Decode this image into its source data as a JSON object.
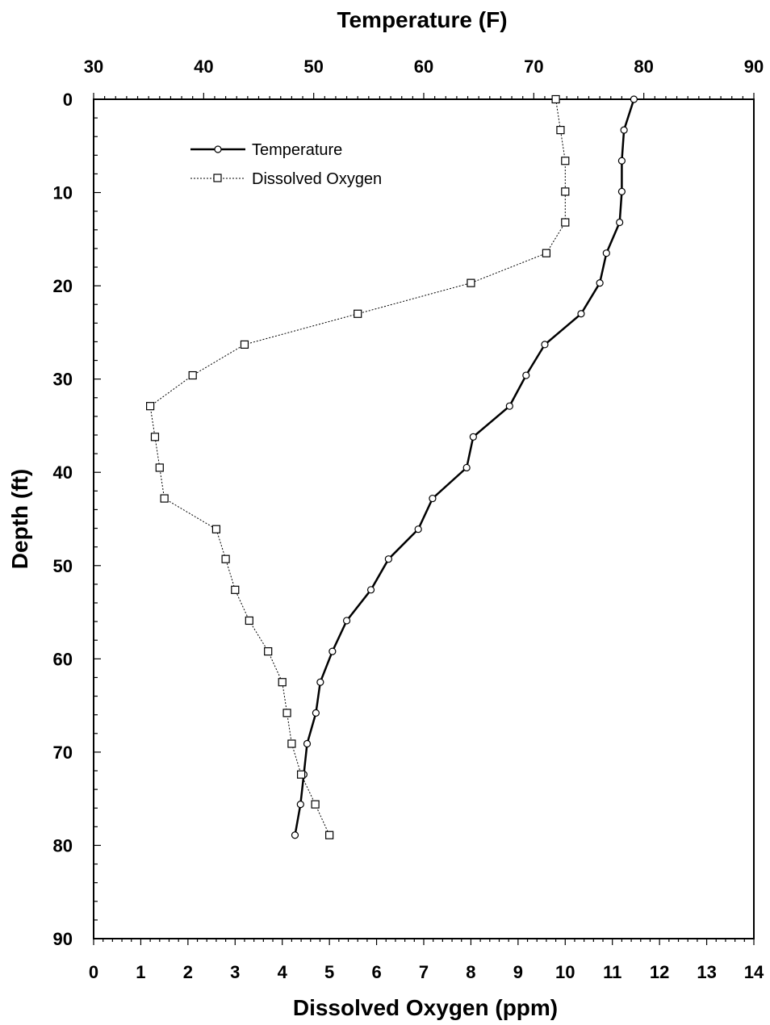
{
  "chart_data": {
    "type": "line",
    "title": "",
    "top_axis": {
      "label": "Temperature (F)",
      "range": [
        30,
        90
      ],
      "ticks": [
        30,
        40,
        50,
        60,
        70,
        80,
        90
      ]
    },
    "bottom_axis": {
      "label": "Dissolved Oxygen (ppm)",
      "range": [
        0,
        14
      ],
      "ticks": [
        0,
        1,
        2,
        3,
        4,
        5,
        6,
        7,
        8,
        9,
        10,
        11,
        12,
        13,
        14
      ]
    },
    "y_axis": {
      "label": "Depth (ft)",
      "range": [
        0,
        90
      ],
      "inverted": true,
      "ticks": [
        0,
        10,
        20,
        30,
        40,
        50,
        60,
        70,
        80,
        90
      ]
    },
    "grid": false,
    "legend": {
      "placement": "top-left",
      "entries": [
        "Temperature",
        "Dissolved Oxygen"
      ]
    },
    "series": [
      {
        "name": "Temperature",
        "axis": "top",
        "marker": "circle",
        "line": "solid",
        "color": "#000000",
        "points": [
          [
            79.1,
            0
          ],
          [
            78.2,
            3.3
          ],
          [
            78.0,
            6.6
          ],
          [
            78.0,
            9.9
          ],
          [
            77.8,
            13.2
          ],
          [
            76.6,
            16.5
          ],
          [
            76.0,
            19.7
          ],
          [
            74.3,
            23.0
          ],
          [
            71.0,
            26.3
          ],
          [
            69.3,
            29.6
          ],
          [
            67.8,
            32.9
          ],
          [
            64.5,
            36.2
          ],
          [
            63.9,
            39.5
          ],
          [
            60.8,
            42.8
          ],
          [
            59.5,
            46.1
          ],
          [
            56.8,
            49.3
          ],
          [
            55.2,
            52.6
          ],
          [
            53.0,
            55.9
          ],
          [
            51.7,
            59.2
          ],
          [
            50.6,
            62.5
          ],
          [
            50.2,
            65.8
          ],
          [
            49.4,
            69.1
          ],
          [
            49.1,
            72.4
          ],
          [
            48.8,
            75.6
          ],
          [
            48.3,
            78.9
          ]
        ]
      },
      {
        "name": "Dissolved Oxygen",
        "axis": "bottom",
        "marker": "square",
        "line": "dotted",
        "color": "#000000",
        "points": [
          [
            9.8,
            0
          ],
          [
            9.9,
            3.3
          ],
          [
            10.0,
            6.6
          ],
          [
            10.0,
            9.9
          ],
          [
            10.0,
            13.2
          ],
          [
            9.6,
            16.5
          ],
          [
            8.0,
            19.7
          ],
          [
            5.6,
            23.0
          ],
          [
            3.2,
            26.3
          ],
          [
            2.1,
            29.6
          ],
          [
            1.2,
            32.9
          ],
          [
            1.3,
            36.2
          ],
          [
            1.4,
            39.5
          ],
          [
            1.5,
            42.8
          ],
          [
            2.6,
            46.1
          ],
          [
            2.8,
            49.3
          ],
          [
            3.0,
            52.6
          ],
          [
            3.3,
            55.9
          ],
          [
            3.7,
            59.2
          ],
          [
            4.0,
            62.5
          ],
          [
            4.1,
            65.8
          ],
          [
            4.2,
            69.1
          ],
          [
            4.4,
            72.4
          ],
          [
            4.7,
            75.6
          ],
          [
            5.0,
            78.9
          ]
        ]
      }
    ]
  }
}
